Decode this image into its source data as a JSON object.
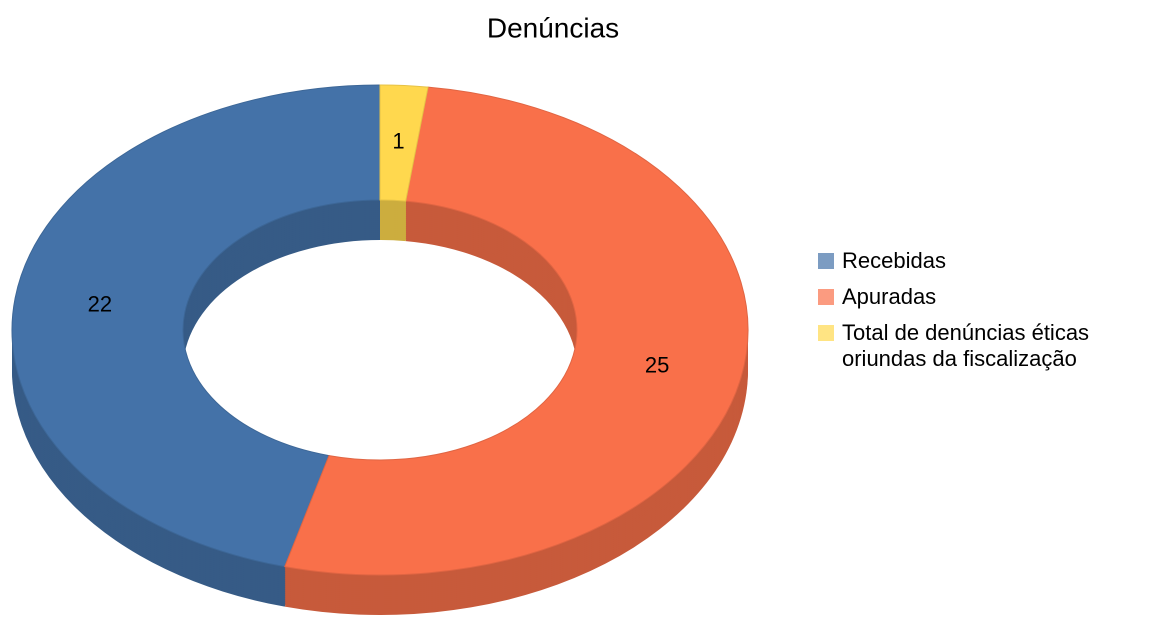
{
  "chart_data": {
    "type": "donut",
    "title": "Denúncias",
    "series": [
      {
        "name": "Recebidas",
        "color": "#4472a8",
        "values": [
          22
        ]
      },
      {
        "name": "Apuradas",
        "color": "#f9704a",
        "values": [
          25
        ]
      },
      {
        "name": "Total de denúncias éticas oriundas da fiscalização",
        "color": "#ffd84e",
        "values": [
          1
        ]
      }
    ],
    "legend": "right"
  }
}
